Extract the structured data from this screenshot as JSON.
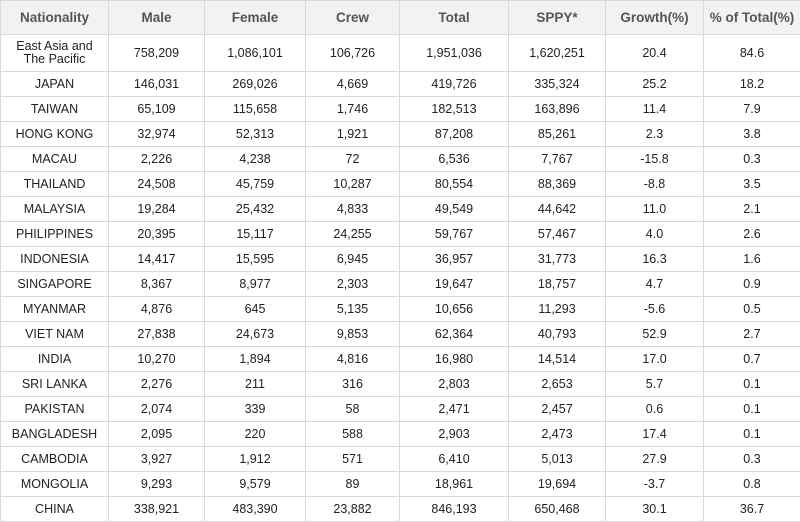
{
  "table": {
    "headers": [
      "Nationality",
      "Male",
      "Female",
      "Crew",
      "Total",
      "SPPY*",
      "Growth(%)",
      "% of Total(%)"
    ],
    "rows": [
      [
        "East Asia and The Pacific",
        "758,209",
        "1,086,101",
        "106,726",
        "1,951,036",
        "1,620,251",
        "20.4",
        "84.6"
      ],
      [
        "JAPAN",
        "146,031",
        "269,026",
        "4,669",
        "419,726",
        "335,324",
        "25.2",
        "18.2"
      ],
      [
        "TAIWAN",
        "65,109",
        "115,658",
        "1,746",
        "182,513",
        "163,896",
        "11.4",
        "7.9"
      ],
      [
        "HONG KONG",
        "32,974",
        "52,313",
        "1,921",
        "87,208",
        "85,261",
        "2.3",
        "3.8"
      ],
      [
        "MACAU",
        "2,226",
        "4,238",
        "72",
        "6,536",
        "7,767",
        "-15.8",
        "0.3"
      ],
      [
        "THAILAND",
        "24,508",
        "45,759",
        "10,287",
        "80,554",
        "88,369",
        "-8.8",
        "3.5"
      ],
      [
        "MALAYSIA",
        "19,284",
        "25,432",
        "4,833",
        "49,549",
        "44,642",
        "11.0",
        "2.1"
      ],
      [
        "PHILIPPINES",
        "20,395",
        "15,117",
        "24,255",
        "59,767",
        "57,467",
        "4.0",
        "2.6"
      ],
      [
        "INDONESIA",
        "14,417",
        "15,595",
        "6,945",
        "36,957",
        "31,773",
        "16.3",
        "1.6"
      ],
      [
        "SINGAPORE",
        "8,367",
        "8,977",
        "2,303",
        "19,647",
        "18,757",
        "4.7",
        "0.9"
      ],
      [
        "MYANMAR",
        "4,876",
        "645",
        "5,135",
        "10,656",
        "11,293",
        "-5.6",
        "0.5"
      ],
      [
        "VIET NAM",
        "27,838",
        "24,673",
        "9,853",
        "62,364",
        "40,793",
        "52.9",
        "2.7"
      ],
      [
        "INDIA",
        "10,270",
        "1,894",
        "4,816",
        "16,980",
        "14,514",
        "17.0",
        "0.7"
      ],
      [
        "SRI LANKA",
        "2,276",
        "211",
        "316",
        "2,803",
        "2,653",
        "5.7",
        "0.1"
      ],
      [
        "PAKISTAN",
        "2,074",
        "339",
        "58",
        "2,471",
        "2,457",
        "0.6",
        "0.1"
      ],
      [
        "BANGLADESH",
        "2,095",
        "220",
        "588",
        "2,903",
        "2,473",
        "17.4",
        "0.1"
      ],
      [
        "CAMBODIA",
        "3,927",
        "1,912",
        "571",
        "6,410",
        "5,013",
        "27.9",
        "0.3"
      ],
      [
        "MONGOLIA",
        "9,293",
        "9,579",
        "89",
        "18,961",
        "19,694",
        "-3.7",
        "0.8"
      ],
      [
        "CHINA",
        "338,921",
        "483,390",
        "23,882",
        "846,193",
        "650,468",
        "30.1",
        "36.7"
      ]
    ]
  }
}
